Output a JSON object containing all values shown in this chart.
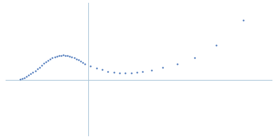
{
  "background_color": "#ffffff",
  "dot_color": "#4472b8",
  "dot_size": 3,
  "axis_color": "#a8c4d8",
  "axis_lw": 0.7,
  "figsize": [
    4.0,
    2.0
  ],
  "dpi": 100,
  "x": [
    0.01,
    0.013,
    0.016,
    0.019,
    0.022,
    0.025,
    0.028,
    0.031,
    0.034,
    0.037,
    0.04,
    0.043,
    0.046,
    0.049,
    0.052,
    0.055,
    0.058,
    0.061,
    0.064,
    0.067,
    0.07,
    0.073,
    0.076,
    0.079,
    0.082,
    0.085,
    0.088,
    0.091,
    0.094,
    0.097,
    0.1,
    0.108,
    0.116,
    0.124,
    0.132,
    0.14,
    0.148,
    0.156,
    0.164,
    0.172,
    0.18,
    0.192,
    0.208,
    0.228,
    0.252,
    0.282,
    0.32
  ],
  "y": [
    0.0008,
    0.0014,
    0.0022,
    0.0032,
    0.0044,
    0.0058,
    0.0073,
    0.0089,
    0.0106,
    0.0123,
    0.014,
    0.0158,
    0.0175,
    0.0191,
    0.0204,
    0.0215,
    0.0224,
    0.0231,
    0.0235,
    0.0238,
    0.0239,
    0.0238,
    0.0234,
    0.0229,
    0.0222,
    0.0214,
    0.0204,
    0.0193,
    0.0181,
    0.0169,
    0.0157,
    0.0134,
    0.0114,
    0.0097,
    0.0083,
    0.0074,
    0.0069,
    0.0067,
    0.0068,
    0.0072,
    0.0079,
    0.0094,
    0.0118,
    0.0152,
    0.0215,
    0.034,
    0.058
  ],
  "xlim": [
    -0.01,
    0.36
  ],
  "ylim": [
    -0.055,
    0.075
  ],
  "vline_x": 0.105,
  "hline_y": 0.0
}
